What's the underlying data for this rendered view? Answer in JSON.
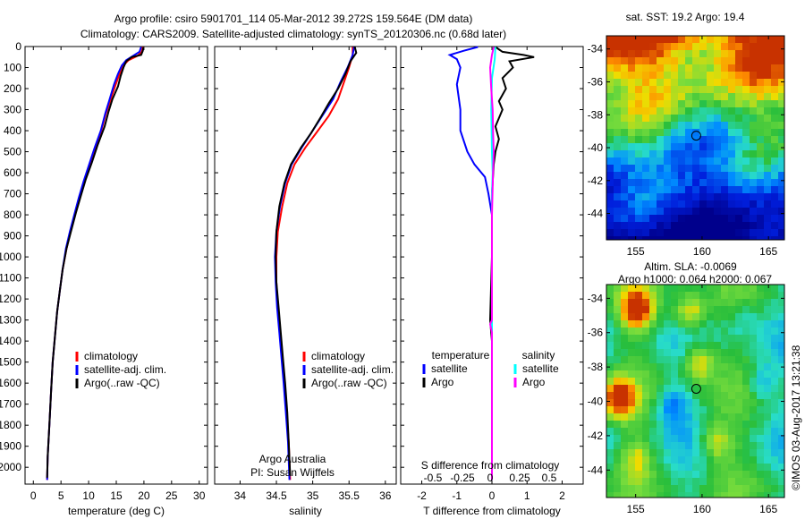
{
  "header": {
    "line1": "Argo profile: csiro 5901701_114 05-Mar-2012 39.272S 159.564E (DM data)",
    "line2": "Climatology: CARS2009. Satellite-adjusted climatology: synTS_20120306.nc (0.68d later)"
  },
  "colors": {
    "climatology": "#ff0000",
    "satellite": "#0000ff",
    "argo": "#000000",
    "sal_satellite": "#00ffff",
    "sal_argo": "#ff00ff"
  },
  "chart_data": [
    {
      "type": "line",
      "name": "temperature",
      "xlabel": "temperature (deg C)",
      "xlim": [
        -1.5,
        31.5
      ],
      "xticks": [
        0,
        5,
        10,
        15,
        20,
        25,
        30
      ],
      "ylim": [
        0,
        2080
      ],
      "yticks": [
        0,
        100,
        200,
        300,
        400,
        500,
        600,
        700,
        800,
        900,
        1000,
        1100,
        1200,
        1300,
        1400,
        1500,
        1600,
        1700,
        1800,
        1900,
        2000
      ],
      "legend": [
        "climatology",
        "satellite-adj. clim.",
        "Argo(..raw -QC)"
      ],
      "series": [
        {
          "name": "climatology",
          "color": "#ff0000",
          "points": [
            [
              19.8,
              2
            ],
            [
              19.6,
              25
            ],
            [
              18.8,
              45
            ],
            [
              17.2,
              65
            ],
            [
              16.3,
              90
            ],
            [
              15.6,
              130
            ],
            [
              14.9,
              180
            ],
            [
              14.0,
              250
            ],
            [
              13.1,
              320
            ],
            [
              12.3,
              400
            ],
            [
              11.2,
              480
            ],
            [
              10.2,
              560
            ],
            [
              9.2,
              640
            ],
            [
              8.3,
              720
            ],
            [
              7.5,
              800
            ],
            [
              6.7,
              880
            ],
            [
              6.0,
              960
            ],
            [
              5.3,
              1060
            ],
            [
              4.8,
              1160
            ],
            [
              4.3,
              1260
            ],
            [
              3.9,
              1380
            ],
            [
              3.5,
              1500
            ],
            [
              3.2,
              1640
            ],
            [
              2.9,
              1800
            ],
            [
              2.6,
              1950
            ],
            [
              2.5,
              2060
            ]
          ]
        },
        {
          "name": "satellite-adj. clim.",
          "color": "#0000ff",
          "points": [
            [
              19.5,
              2
            ],
            [
              19.2,
              25
            ],
            [
              18.0,
              45
            ],
            [
              16.8,
              65
            ],
            [
              16.0,
              90
            ],
            [
              15.3,
              130
            ],
            [
              14.6,
              180
            ],
            [
              13.8,
              250
            ],
            [
              13.0,
              320
            ],
            [
              12.2,
              400
            ],
            [
              11.1,
              480
            ],
            [
              10.1,
              560
            ],
            [
              9.1,
              640
            ],
            [
              8.2,
              720
            ],
            [
              7.4,
              800
            ],
            [
              6.6,
              880
            ],
            [
              5.9,
              960
            ],
            [
              5.3,
              1060
            ],
            [
              4.8,
              1160
            ],
            [
              4.3,
              1260
            ],
            [
              3.9,
              1380
            ],
            [
              3.5,
              1500
            ],
            [
              3.2,
              1640
            ],
            [
              2.9,
              1800
            ],
            [
              2.6,
              1950
            ],
            [
              2.5,
              2060
            ]
          ]
        },
        {
          "name": "Argo(..raw -QC)",
          "color": "#000000",
          "points": [
            [
              19.9,
              5
            ],
            [
              19.8,
              20
            ],
            [
              19.5,
              40
            ],
            [
              17.8,
              50
            ],
            [
              16.8,
              70
            ],
            [
              16.3,
              100
            ],
            [
              15.8,
              140
            ],
            [
              15.3,
              190
            ],
            [
              14.3,
              250
            ],
            [
              13.6,
              310
            ],
            [
              12.9,
              380
            ],
            [
              11.6,
              470
            ],
            [
              10.6,
              550
            ],
            [
              9.5,
              630
            ],
            [
              8.6,
              710
            ],
            [
              7.7,
              790
            ],
            [
              6.8,
              880
            ],
            [
              6.0,
              960
            ],
            [
              5.3,
              1060
            ],
            [
              4.8,
              1160
            ],
            [
              4.3,
              1260
            ],
            [
              3.9,
              1380
            ],
            [
              3.5,
              1500
            ],
            [
              3.2,
              1640
            ],
            [
              2.9,
              1800
            ],
            [
              2.6,
              1950
            ],
            [
              2.5,
              2050
            ]
          ]
        }
      ]
    },
    {
      "type": "line",
      "name": "salinity",
      "xlabel": "salinity",
      "xlim": [
        33.65,
        36.15
      ],
      "xticks": [
        34,
        34.5,
        35,
        35.5,
        36
      ],
      "ylim": [
        0,
        2080
      ],
      "legend": [
        "climatology",
        "satellite-adj. clim.",
        "Argo(..raw -QC)"
      ],
      "annotation": [
        "Argo Australia",
        "PI: Susan Wijffels"
      ],
      "series": [
        {
          "name": "climatology",
          "color": "#ff0000",
          "points": [
            [
              35.55,
              2
            ],
            [
              35.55,
              40
            ],
            [
              35.5,
              100
            ],
            [
              35.43,
              170
            ],
            [
              35.35,
              250
            ],
            [
              35.22,
              330
            ],
            [
              35.05,
              410
            ],
            [
              34.9,
              480
            ],
            [
              34.75,
              560
            ],
            [
              34.65,
              650
            ],
            [
              34.58,
              760
            ],
            [
              34.52,
              880
            ],
            [
              34.5,
              1000
            ],
            [
              34.5,
              1120
            ],
            [
              34.52,
              1240
            ],
            [
              34.55,
              1360
            ],
            [
              34.58,
              1480
            ],
            [
              34.61,
              1600
            ],
            [
              34.64,
              1740
            ],
            [
              34.67,
              1880
            ],
            [
              34.69,
              2060
            ]
          ]
        },
        {
          "name": "satellite-adj. clim.",
          "color": "#0000ff",
          "points": [
            [
              35.57,
              2
            ],
            [
              35.55,
              40
            ],
            [
              35.48,
              100
            ],
            [
              35.38,
              170
            ],
            [
              35.28,
              250
            ],
            [
              35.13,
              330
            ],
            [
              34.98,
              410
            ],
            [
              34.85,
              480
            ],
            [
              34.71,
              560
            ],
            [
              34.62,
              650
            ],
            [
              34.55,
              760
            ],
            [
              34.5,
              880
            ],
            [
              34.48,
              1000
            ],
            [
              34.49,
              1120
            ],
            [
              34.51,
              1240
            ],
            [
              34.54,
              1360
            ],
            [
              34.57,
              1480
            ],
            [
              34.6,
              1600
            ],
            [
              34.63,
              1740
            ],
            [
              34.66,
              1880
            ],
            [
              34.68,
              2060
            ]
          ]
        },
        {
          "name": "Argo(..raw -QC)",
          "color": "#000000",
          "points": [
            [
              35.58,
              2
            ],
            [
              35.6,
              30
            ],
            [
              35.52,
              70
            ],
            [
              35.45,
              130
            ],
            [
              35.35,
              200
            ],
            [
              35.22,
              270
            ],
            [
              35.12,
              330
            ],
            [
              34.98,
              410
            ],
            [
              34.84,
              480
            ],
            [
              34.7,
              560
            ],
            [
              34.61,
              650
            ],
            [
              34.54,
              760
            ],
            [
              34.5,
              880
            ],
            [
              34.49,
              1000
            ],
            [
              34.5,
              1120
            ],
            [
              34.53,
              1240
            ],
            [
              34.56,
              1360
            ],
            [
              34.59,
              1480
            ],
            [
              34.62,
              1600
            ],
            [
              34.65,
              1740
            ],
            [
              34.67,
              1880
            ],
            [
              34.69,
              2040
            ]
          ]
        }
      ]
    },
    {
      "type": "line",
      "name": "difference",
      "xlabel": "T difference from climatology",
      "xlim": [
        -2.6,
        2.6
      ],
      "xticks": [
        -2,
        -1,
        0,
        1,
        2
      ],
      "top_axis_label": "S difference from climatology",
      "top_ticks": [
        "-0.5",
        "-0.25",
        "0",
        "0.25",
        "0.5"
      ],
      "legend_temperature_title": "temperature",
      "legend_salinity_title": "salinity",
      "legend_entries": [
        "satellite",
        "Argo",
        "satellite",
        "Argo"
      ],
      "series": [
        {
          "name": "temperature satellite",
          "color": "#0000ff",
          "points": [
            [
              -0.4,
              2
            ],
            [
              -0.8,
              20
            ],
            [
              -1.2,
              40
            ],
            [
              -1.0,
              60
            ],
            [
              -0.9,
              100
            ],
            [
              -1.0,
              180
            ],
            [
              -0.9,
              300
            ],
            [
              -0.9,
              400
            ],
            [
              -0.7,
              500
            ],
            [
              -0.5,
              560
            ],
            [
              -0.2,
              620
            ],
            [
              -0.1,
              700
            ],
            [
              0,
              800
            ],
            [
              0,
              1000
            ],
            [
              0,
              2060
            ]
          ]
        },
        {
          "name": "temperature Argo",
          "color": "#000000",
          "points": [
            [
              0.1,
              2
            ],
            [
              0.3,
              25
            ],
            [
              0.9,
              40
            ],
            [
              1.2,
              50
            ],
            [
              0.5,
              70
            ],
            [
              0.6,
              100
            ],
            [
              0.3,
              150
            ],
            [
              0.4,
              200
            ],
            [
              0.2,
              260
            ],
            [
              0.3,
              300
            ],
            [
              0.1,
              380
            ],
            [
              0.2,
              440
            ],
            [
              0.1,
              500
            ],
            [
              0.05,
              560
            ],
            [
              0,
              700
            ],
            [
              0,
              1000
            ],
            [
              -0.05,
              1300
            ],
            [
              0,
              1400
            ],
            [
              0,
              2060
            ]
          ]
        },
        {
          "name": "salinity satellite",
          "color": "#00ffff",
          "points": [
            [
              0.1,
              2
            ],
            [
              0.08,
              60
            ],
            [
              0,
              150
            ],
            [
              -0.02,
              300
            ],
            [
              0,
              500
            ],
            [
              0.02,
              600
            ],
            [
              0,
              700
            ],
            [
              0,
              1000
            ],
            [
              0,
              2060
            ]
          ]
        },
        {
          "name": "salinity Argo",
          "color": "#ff00ff",
          "points": [
            [
              0.05,
              2
            ],
            [
              0,
              40
            ],
            [
              -0.05,
              100
            ],
            [
              -0.02,
              200
            ],
            [
              0.02,
              300
            ],
            [
              0.03,
              400
            ],
            [
              0.05,
              500
            ],
            [
              0.03,
              600
            ],
            [
              0,
              800
            ],
            [
              0,
              1300
            ],
            [
              -0.05,
              1320
            ],
            [
              0,
              1360
            ],
            [
              0,
              2060
            ]
          ]
        }
      ]
    },
    {
      "type": "heatmap",
      "name": "sst-map",
      "title": "sat. SST: 19.2  Argo: 19.4",
      "xticks": [
        155,
        160,
        165
      ],
      "yticks": [
        -34,
        -36,
        -38,
        -40,
        -42,
        -44
      ],
      "xlim": [
        152.8,
        166.2
      ],
      "ylim": [
        -45.6,
        -33.2
      ],
      "marker": [
        159.56,
        -39.27
      ]
    },
    {
      "type": "heatmap",
      "name": "sla-map",
      "title_line1": "Altim. SLA: -0.0069",
      "title_line2": "Argo h1000: 0.064 h2000: 0.067",
      "xticks": [
        155,
        160,
        165
      ],
      "yticks": [
        -34,
        -36,
        -38,
        -40,
        -42,
        -44
      ],
      "xlim": [
        152.8,
        166.2
      ],
      "ylim": [
        -45.6,
        -33.2
      ],
      "marker": [
        159.56,
        -39.27
      ]
    }
  ],
  "footer": {
    "stamp": "©IMOS 03-Aug-2017 13:21:38"
  }
}
